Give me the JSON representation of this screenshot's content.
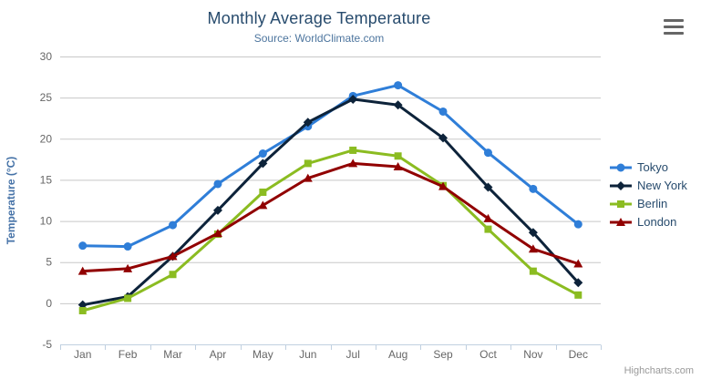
{
  "chart_data": {
    "type": "line",
    "title": "Monthly Average Temperature",
    "subtitle": "Source: WorldClimate.com",
    "categories": [
      "Jan",
      "Feb",
      "Mar",
      "Apr",
      "May",
      "Jun",
      "Jul",
      "Aug",
      "Sep",
      "Oct",
      "Nov",
      "Dec"
    ],
    "xlabel": "",
    "ylabel": "Temperature (°C)",
    "ylim": [
      -5,
      30
    ],
    "ytick_interval": 5,
    "grid": true,
    "legend_position": "right",
    "series": [
      {
        "name": "Tokyo",
        "color": "#2f7ed8",
        "marker": "circle",
        "values": [
          7.0,
          6.9,
          9.5,
          14.5,
          18.2,
          21.5,
          25.2,
          26.5,
          23.3,
          18.3,
          13.9,
          9.6
        ]
      },
      {
        "name": "New York",
        "color": "#0d233a",
        "marker": "diamond",
        "values": [
          -0.2,
          0.8,
          5.7,
          11.3,
          17.0,
          22.0,
          24.8,
          24.1,
          20.1,
          14.1,
          8.6,
          2.5
        ]
      },
      {
        "name": "Berlin",
        "color": "#8bbc21",
        "marker": "square",
        "values": [
          -0.9,
          0.6,
          3.5,
          8.4,
          13.5,
          17.0,
          18.6,
          17.9,
          14.3,
          9.0,
          3.9,
          1.0
        ]
      },
      {
        "name": "London",
        "color": "#910000",
        "marker": "triangle",
        "values": [
          3.9,
          4.2,
          5.7,
          8.5,
          11.9,
          15.2,
          17.0,
          16.6,
          14.2,
          10.3,
          6.6,
          4.8
        ]
      }
    ]
  },
  "credits": {
    "label": "Highcharts.com"
  },
  "icons": {
    "export_menu": "hamburger-icon"
  },
  "colors": {
    "title": "#274b6d",
    "subtitle": "#4d759e",
    "axis_title": "#4572a7",
    "axis_labels": "#666666",
    "grid_line": "#c8c8c8",
    "axis_line": "#c0d0e0",
    "legend_text": "#274b6d",
    "credits_text": "#999999"
  }
}
